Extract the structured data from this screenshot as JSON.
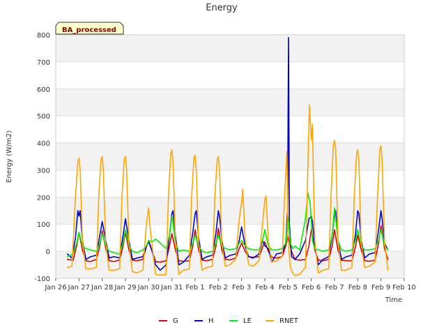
{
  "chart_data": {
    "type": "line",
    "title": "Energy",
    "xlabel": "Time",
    "ylabel": "Energy (W/m2)",
    "badge": "BA_processed",
    "xlim": [
      0,
      15
    ],
    "ylim": [
      -100,
      800
    ],
    "yticks": [
      -100,
      0,
      100,
      200,
      300,
      400,
      500,
      600,
      700,
      800
    ],
    "xticks": [
      0,
      1,
      2,
      3,
      4,
      5,
      6,
      7,
      8,
      9,
      10,
      11,
      12,
      13,
      14,
      15
    ],
    "xtick_labels": [
      "Jan 26",
      "Jan 27",
      "Jan 28",
      "Jan 29",
      "Jan 30",
      "Jan 31",
      "Feb 1",
      "Feb 2",
      "Feb 3",
      "Feb 4",
      "Feb 5",
      "Feb 6",
      "Feb 7",
      "Feb 8",
      "Feb 9",
      "Feb 10"
    ],
    "x_unit": "days since Jan 26",
    "series": [
      {
        "name": "G",
        "color": "#dd0000",
        "x": [
          0.5,
          0.75,
          0.9,
          1.0,
          1.15,
          1.3,
          1.5,
          1.75,
          1.9,
          2.0,
          2.15,
          2.3,
          2.5,
          2.75,
          2.9,
          3.0,
          3.15,
          3.3,
          3.5,
          3.75,
          3.9,
          4.0,
          4.15,
          4.3,
          4.5,
          4.75,
          4.9,
          5.0,
          5.15,
          5.3,
          5.5,
          5.75,
          5.9,
          6.0,
          6.15,
          6.3,
          6.5,
          6.75,
          6.9,
          7.0,
          7.15,
          7.3,
          7.5,
          7.75,
          7.9,
          8.0,
          8.15,
          8.3,
          8.5,
          8.75,
          8.9,
          9.0,
          9.15,
          9.3,
          9.5,
          9.75,
          9.9,
          10.0,
          10.15,
          10.3,
          10.5,
          10.75,
          10.9,
          11.0,
          11.15,
          11.3,
          11.5,
          11.75,
          11.9,
          12.0,
          12.15,
          12.3,
          12.5,
          12.75,
          12.9,
          13.0,
          13.15,
          13.3,
          13.5,
          13.75,
          13.9,
          14.0,
          14.15,
          14.3
        ],
        "y": [
          -30,
          -33,
          20,
          70,
          5,
          -35,
          -38,
          -30,
          20,
          75,
          10,
          -35,
          -38,
          -32,
          20,
          70,
          5,
          -33,
          -35,
          -30,
          15,
          40,
          0,
          -38,
          -40,
          -35,
          20,
          65,
          5,
          -35,
          -37,
          -35,
          20,
          80,
          5,
          -33,
          -35,
          -30,
          20,
          85,
          5,
          -30,
          -32,
          -25,
          10,
          30,
          0,
          -20,
          -22,
          -20,
          15,
          35,
          0,
          -22,
          -25,
          -20,
          20,
          60,
          0,
          -30,
          -33,
          -30,
          20,
          80,
          5,
          -33,
          -35,
          -30,
          20,
          80,
          5,
          -33,
          -35,
          -35,
          15,
          60,
          5,
          -35,
          -37,
          -33,
          30,
          95,
          10,
          -30
        ]
      },
      {
        "name": "H",
        "color": "#0000cc",
        "x": [
          0.5,
          0.7,
          0.85,
          0.95,
          1.0,
          1.05,
          1.15,
          1.3,
          1.5,
          1.75,
          1.9,
          2.0,
          2.15,
          2.3,
          2.5,
          2.75,
          2.9,
          3.0,
          3.15,
          3.3,
          3.5,
          3.75,
          3.9,
          4.0,
          4.15,
          4.3,
          4.5,
          4.75,
          4.9,
          5.0,
          5.05,
          5.15,
          5.3,
          5.5,
          5.75,
          5.9,
          6.0,
          6.05,
          6.15,
          6.3,
          6.5,
          6.75,
          6.9,
          7.0,
          7.05,
          7.15,
          7.3,
          7.5,
          7.75,
          7.9,
          8.0,
          8.15,
          8.3,
          8.5,
          8.75,
          8.9,
          9.0,
          9.15,
          9.3,
          9.5,
          9.75,
          9.9,
          9.98,
          10.02,
          10.06,
          10.15,
          10.3,
          10.5,
          10.75,
          10.9,
          11.0,
          11.05,
          11.15,
          11.3,
          11.5,
          11.75,
          11.9,
          12.0,
          12.05,
          12.15,
          12.3,
          12.5,
          12.75,
          12.9,
          13.0,
          13.05,
          13.15,
          13.3,
          13.5,
          13.75,
          13.9,
          14.0,
          14.05,
          14.15,
          14.3
        ],
        "y": [
          -10,
          -25,
          50,
          150,
          130,
          150,
          40,
          -30,
          -20,
          -15,
          60,
          110,
          40,
          -25,
          -20,
          -25,
          60,
          120,
          40,
          -30,
          -25,
          -20,
          20,
          35,
          0,
          -50,
          -70,
          -50,
          60,
          140,
          150,
          60,
          -50,
          -40,
          -15,
          70,
          140,
          150,
          50,
          -30,
          -20,
          -15,
          70,
          150,
          130,
          40,
          -25,
          -15,
          -10,
          40,
          90,
          20,
          -20,
          -25,
          -10,
          40,
          20,
          10,
          -40,
          -10,
          -5,
          30,
          150,
          790,
          100,
          -20,
          -30,
          -10,
          40,
          120,
          130,
          110,
          20,
          -50,
          -30,
          -20,
          60,
          140,
          150,
          40,
          -30,
          -20,
          -15,
          60,
          150,
          140,
          40,
          -25,
          -10,
          -5,
          80,
          150,
          120,
          30,
          5
        ]
      },
      {
        "name": "LE",
        "color": "#00ee00",
        "x": [
          0.5,
          0.75,
          0.9,
          1.0,
          1.15,
          1.3,
          1.5,
          1.75,
          1.9,
          2.0,
          2.15,
          2.3,
          2.5,
          2.75,
          2.9,
          3.0,
          3.15,
          3.3,
          3.5,
          3.75,
          3.9,
          4.0,
          4.15,
          4.3,
          4.5,
          4.75,
          4.9,
          5.0,
          5.15,
          5.3,
          5.5,
          5.75,
          5.9,
          6.0,
          6.15,
          6.3,
          6.5,
          6.75,
          6.9,
          7.0,
          7.15,
          7.3,
          7.5,
          7.75,
          7.9,
          8.0,
          8.15,
          8.3,
          8.5,
          8.75,
          8.9,
          9.0,
          9.15,
          9.3,
          9.5,
          9.75,
          9.9,
          10.0,
          10.1,
          10.2,
          10.3,
          10.5,
          10.75,
          10.85,
          10.95,
          11.05,
          11.15,
          11.3,
          11.5,
          11.75,
          11.9,
          12.0,
          12.15,
          12.3,
          12.5,
          12.75,
          12.9,
          13.0,
          13.15,
          13.3,
          13.5,
          13.75,
          13.9,
          14.0,
          14.15,
          14.3
        ],
        "y": [
          -20,
          -10,
          30,
          70,
          20,
          10,
          5,
          0,
          30,
          65,
          20,
          0,
          -5,
          -10,
          30,
          80,
          20,
          0,
          -5,
          5,
          20,
          40,
          35,
          45,
          30,
          10,
          60,
          130,
          30,
          0,
          5,
          0,
          30,
          60,
          20,
          0,
          -5,
          0,
          30,
          60,
          20,
          10,
          5,
          10,
          30,
          40,
          20,
          10,
          5,
          5,
          40,
          80,
          20,
          5,
          5,
          10,
          30,
          130,
          30,
          10,
          20,
          5,
          120,
          215,
          180,
          40,
          10,
          5,
          0,
          5,
          60,
          160,
          40,
          5,
          0,
          5,
          40,
          80,
          20,
          5,
          5,
          10,
          40,
          80,
          20,
          5
        ]
      },
      {
        "name": "RNET",
        "color": "#ffa500",
        "x": [
          0.5,
          0.7,
          0.85,
          0.95,
          1.0,
          1.05,
          1.15,
          1.3,
          1.5,
          1.75,
          1.85,
          1.95,
          2.0,
          2.05,
          2.15,
          2.3,
          2.5,
          2.75,
          2.85,
          2.95,
          3.0,
          3.05,
          3.15,
          3.3,
          3.5,
          3.75,
          3.9,
          4.0,
          4.05,
          4.15,
          4.3,
          4.5,
          4.75,
          4.85,
          4.95,
          5.0,
          5.05,
          5.15,
          5.3,
          5.5,
          5.75,
          5.85,
          5.95,
          6.0,
          6.05,
          6.15,
          6.3,
          6.5,
          6.75,
          6.85,
          6.95,
          7.0,
          7.05,
          7.15,
          7.3,
          7.5,
          7.75,
          7.9,
          8.0,
          8.05,
          8.15,
          8.3,
          8.5,
          8.75,
          8.9,
          9.0,
          9.05,
          9.15,
          9.3,
          9.5,
          9.75,
          9.85,
          9.95,
          10.0,
          10.1,
          10.2,
          10.3,
          10.5,
          10.75,
          10.85,
          10.92,
          11.0,
          11.05,
          11.15,
          11.3,
          11.5,
          11.75,
          11.85,
          11.95,
          12.0,
          12.05,
          12.15,
          12.3,
          12.5,
          12.75,
          12.85,
          12.95,
          13.0,
          13.05,
          13.15,
          13.3,
          13.5,
          13.75,
          13.85,
          13.95,
          14.0,
          14.05,
          14.15,
          14.3
        ],
        "y": [
          -60,
          -55,
          200,
          330,
          345,
          300,
          40,
          -65,
          -65,
          -60,
          200,
          340,
          350,
          300,
          30,
          -70,
          -70,
          -65,
          200,
          340,
          350,
          300,
          30,
          -75,
          -80,
          -70,
          100,
          160,
          100,
          20,
          -85,
          -88,
          -85,
          200,
          360,
          375,
          330,
          40,
          -85,
          -70,
          -65,
          200,
          345,
          355,
          300,
          30,
          -70,
          -60,
          -55,
          200,
          340,
          350,
          300,
          30,
          -55,
          -50,
          -30,
          120,
          180,
          230,
          50,
          -50,
          -55,
          -35,
          100,
          190,
          205,
          40,
          -40,
          -35,
          -20,
          200,
          370,
          40,
          -60,
          -80,
          -90,
          -85,
          -60,
          300,
          540,
          410,
          470,
          40,
          -80,
          -70,
          -65,
          200,
          390,
          410,
          380,
          40,
          -70,
          -70,
          -60,
          200,
          360,
          375,
          330,
          30,
          -60,
          -55,
          -40,
          200,
          375,
          390,
          340,
          40,
          -70
        ]
      }
    ]
  },
  "legend": {
    "items": [
      {
        "name": "G",
        "color": "#dd0000"
      },
      {
        "name": "H",
        "color": "#0000cc"
      },
      {
        "name": "LE",
        "color": "#00ee00"
      },
      {
        "name": "RNET",
        "color": "#ffa500"
      }
    ]
  }
}
